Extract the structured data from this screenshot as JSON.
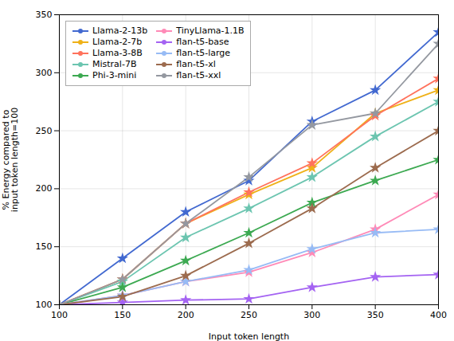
{
  "chart_data": {
    "type": "line",
    "xlabel": "Input token length",
    "ylabel": "% Energy compared to\ninput token length=100",
    "x": [
      100,
      150,
      200,
      250,
      300,
      350,
      400
    ],
    "series": [
      {
        "name": "Llama-2-13b",
        "values": [
          100,
          140,
          180,
          207,
          258,
          285,
          335
        ]
      },
      {
        "name": "Llama-2-7b",
        "values": [
          100,
          122,
          170,
          195,
          218,
          265,
          285
        ]
      },
      {
        "name": "Llama-3-8B",
        "values": [
          100,
          122,
          170,
          197,
          222,
          263,
          295
        ]
      },
      {
        "name": "Mistral-7B",
        "values": [
          100,
          120,
          158,
          183,
          210,
          245,
          275
        ]
      },
      {
        "name": "Phi-3-mini",
        "values": [
          100,
          115,
          138,
          162,
          188,
          207,
          225
        ]
      },
      {
        "name": "TinyLlama-1.1B",
        "values": [
          100,
          108,
          120,
          128,
          145,
          165,
          195
        ]
      },
      {
        "name": "flan-t5-base",
        "values": [
          100,
          102,
          104,
          105,
          115,
          124,
          126
        ]
      },
      {
        "name": "flan-t5-large",
        "values": [
          100,
          108,
          120,
          130,
          148,
          162,
          165
        ]
      },
      {
        "name": "flan-t5-xl",
        "values": [
          100,
          107,
          125,
          153,
          183,
          218,
          250
        ]
      },
      {
        "name": "flan-t5-xxl",
        "values": [
          100,
          122,
          170,
          210,
          255,
          265,
          325
        ]
      }
    ],
    "xlim": [
      100,
      400
    ],
    "ylim": [
      100,
      350
    ],
    "xticks": [
      100,
      150,
      200,
      250,
      300,
      350,
      400
    ],
    "yticks": [
      100,
      150,
      200,
      250,
      300,
      350
    ],
    "grid": true,
    "legend": "upper left",
    "marker": "star"
  }
}
